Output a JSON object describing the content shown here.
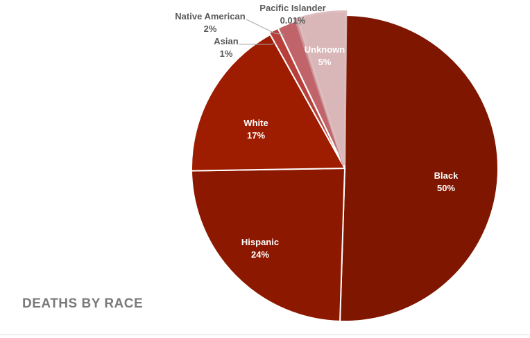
{
  "chart_data": {
    "type": "pie",
    "title": "DEATHS BY RACE",
    "slices": [
      {
        "label": "Black",
        "value": 50,
        "display": "50%",
        "color": "#7f1600",
        "label_color": "#ffffff",
        "label_style": "inside"
      },
      {
        "label": "Hispanic",
        "value": 24,
        "display": "24%",
        "color": "#8c1800",
        "label_color": "#ffffff",
        "label_style": "inside"
      },
      {
        "label": "White",
        "value": 17,
        "display": "17%",
        "color": "#9e1c00",
        "label_color": "#ffffff",
        "label_style": "inside"
      },
      {
        "label": "Asian",
        "value": 1,
        "display": "1%",
        "color": "#b8403a",
        "label_color": "#595959",
        "label_style": "callout"
      },
      {
        "label": "Native American",
        "value": 2,
        "display": "2%",
        "color": "#c0646a",
        "label_color": "#595959",
        "label_style": "callout"
      },
      {
        "label": "Pacific Islander",
        "value": 0.01,
        "display": "0.01%",
        "color": "#c98a8e",
        "label_color": "#595959",
        "label_style": "callout"
      },
      {
        "label": "Unknown",
        "value": 5,
        "display": "5%",
        "color": "#d9b7b8",
        "label_color": "#ffffff",
        "label_style": "inside"
      }
    ]
  }
}
